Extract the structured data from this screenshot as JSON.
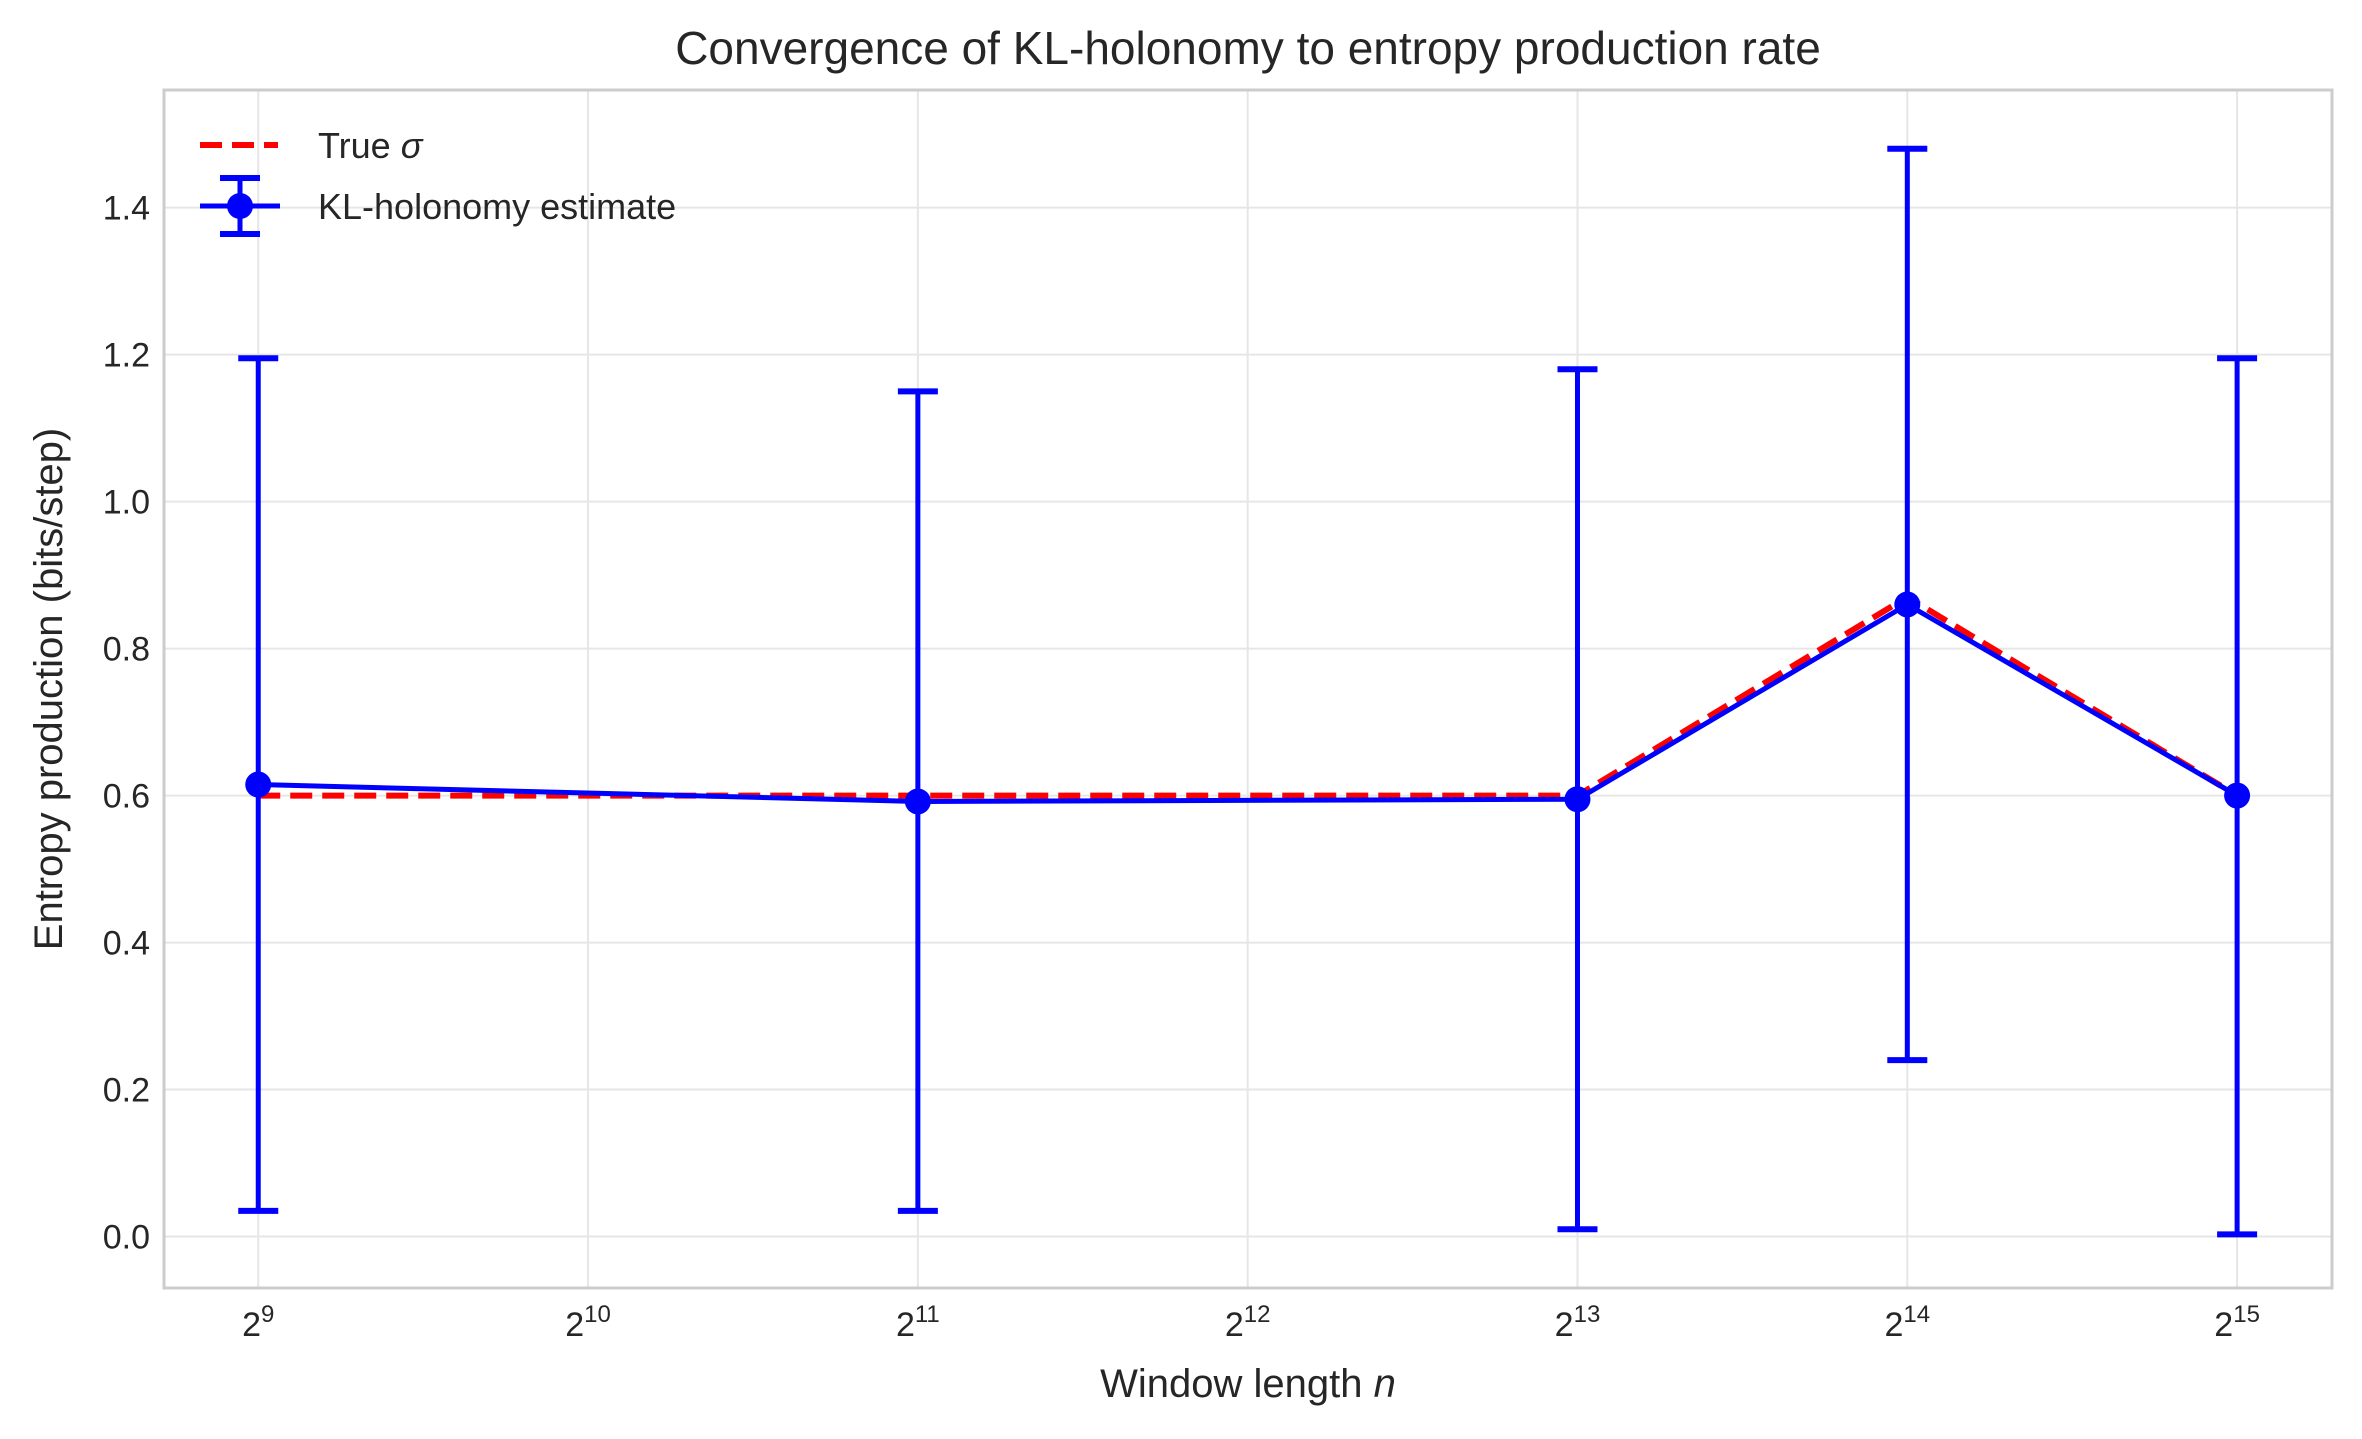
{
  "chart_data": {
    "type": "line",
    "title": "Convergence of KL-holonomy to entropy production rate",
    "xlabel_prefix": "Window length ",
    "xlabel_var": "n",
    "ylabel": "Entropy production (bits/step)",
    "x_scale": "log2",
    "x_ticks": [
      {
        "base": "2",
        "exp": "9",
        "value": 512
      },
      {
        "base": "2",
        "exp": "10",
        "value": 1024
      },
      {
        "base": "2",
        "exp": "11",
        "value": 2048
      },
      {
        "base": "2",
        "exp": "12",
        "value": 4096
      },
      {
        "base": "2",
        "exp": "13",
        "value": 8192
      },
      {
        "base": "2",
        "exp": "14",
        "value": 16384
      },
      {
        "base": "2",
        "exp": "15",
        "value": 32768
      }
    ],
    "xlim": [
      420,
      40000
    ],
    "y_ticks": [
      "0.0",
      "0.2",
      "0.4",
      "0.6",
      "0.8",
      "1.0",
      "1.2",
      "1.4"
    ],
    "ylim": [
      -0.07,
      1.56
    ],
    "grid": true,
    "legend_position": "upper-left",
    "x": [
      512,
      2048,
      8192,
      16384,
      32768
    ],
    "series": [
      {
        "name_text": "True ",
        "name_symbol": "σ",
        "style": "dashed",
        "color": "#ff0000",
        "values": [
          0.6,
          0.6,
          0.6,
          0.87,
          0.6
        ]
      },
      {
        "name": "KL-holonomy estimate",
        "style": "solid-markers-errorbars",
        "color": "#0000ff",
        "values": [
          0.615,
          0.592,
          0.595,
          0.86,
          0.6
        ],
        "err_low": [
          0.035,
          0.035,
          0.01,
          0.24,
          0.003
        ],
        "err_high": [
          1.195,
          1.15,
          1.18,
          1.48,
          1.195
        ]
      }
    ]
  }
}
